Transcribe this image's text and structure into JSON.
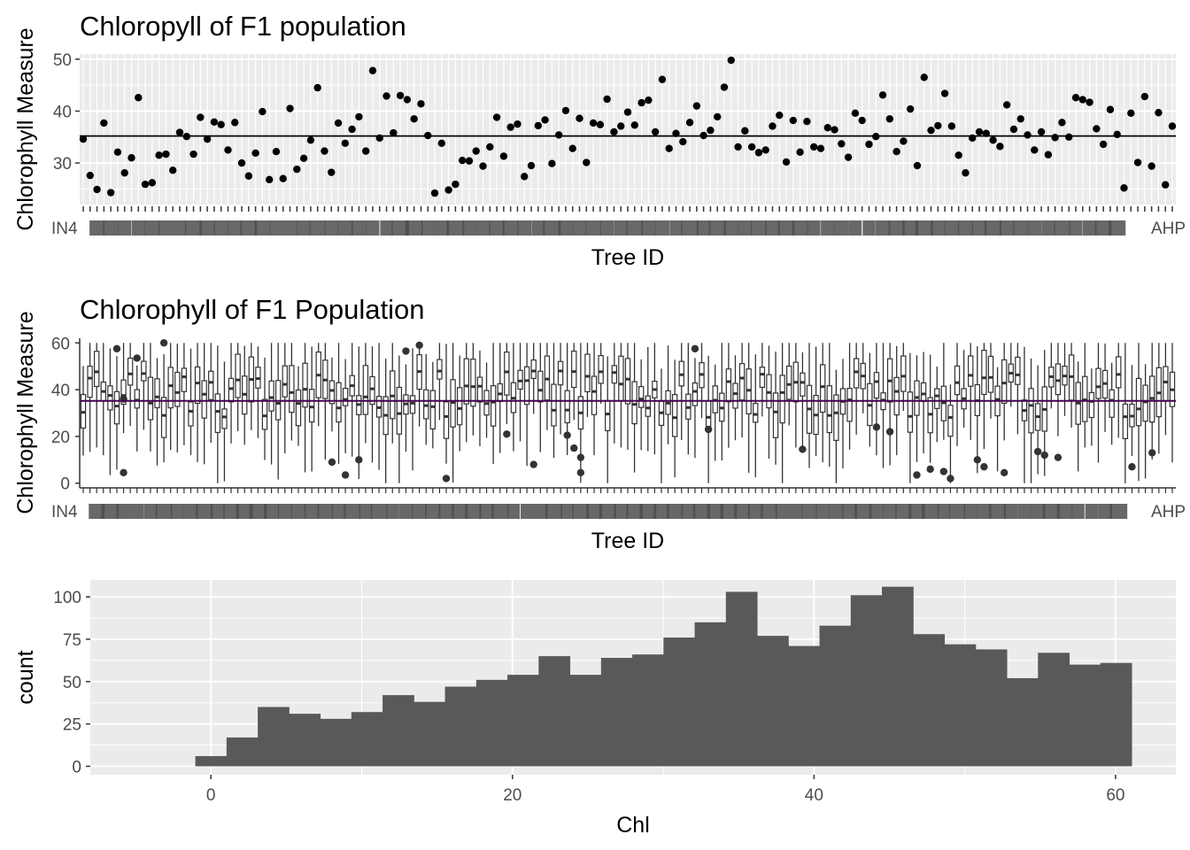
{
  "colors": {
    "panel_bg": "#ebebeb",
    "grid": "#ffffff",
    "point": "#000000",
    "mean_line_1": "#000000",
    "mean_line_2": "#440154",
    "bar_fill": "#595959",
    "text": "#000000",
    "tick_text": "#4d4d4d"
  },
  "chart_data": [
    {
      "type": "scatter",
      "title": "Chloropyll of F1 population",
      "xlabel": "Tree ID",
      "ylabel": "Chlorophyll Measure",
      "ylim": [
        22,
        51
      ],
      "yticks": [
        30,
        40,
        50
      ],
      "x_tick_labels_overlapping": "IN4 ... AHP",
      "x_tick_label_left": "IN4",
      "x_tick_label_right": "AHP",
      "mean_line": 35.2,
      "grid": true,
      "values": [
        34.6,
        27.6,
        24.9,
        37.7,
        24.3,
        32.1,
        28.1,
        31,
        42.6,
        25.9,
        26.2,
        31.5,
        31.7,
        28.6,
        35.9,
        35.1,
        31.7,
        38.8,
        34.6,
        37.9,
        37.4,
        32.5,
        37.8,
        30,
        27.5,
        31.9,
        39.9,
        26.8,
        32.2,
        27,
        40.5,
        28.8,
        30.9,
        34.4,
        44.5,
        32.3,
        28.2,
        37.7,
        33.8,
        36.5,
        38.9,
        32.3,
        47.8,
        34.8,
        42.9,
        35.8,
        43,
        42.2,
        38.5,
        41.4,
        35.3,
        24.2,
        33.8,
        24.8,
        25.9,
        30.5,
        30.4,
        32.3,
        29.4,
        33.1,
        38.8,
        31.3,
        36.9,
        37.5,
        27.4,
        29.5,
        37.2,
        38.3,
        29.9,
        35.4,
        40.1,
        32.8,
        38.6,
        30.1,
        37.7,
        37.4,
        42.3,
        36,
        37.1,
        39.8,
        37.3,
        41.6,
        42.1,
        36,
        46.1,
        32.8,
        35.7,
        34.1,
        37.8,
        41,
        35.3,
        36.3,
        38.9,
        44.6,
        49.8,
        33.1,
        36.2,
        33.1,
        32,
        32.5,
        37.1,
        39.2,
        30.2,
        38.2,
        32.1,
        38,
        33.1,
        32.8,
        36.8,
        36.4,
        33.7,
        31.1,
        39.6,
        38.2,
        33.6,
        35.1,
        43.1,
        38.5,
        32.2,
        34.2,
        40.4,
        29.5,
        46.5,
        36.3,
        37.2,
        43.4,
        37.1,
        31.5,
        28.1,
        34.8,
        36,
        35.7,
        34.4,
        33.2,
        41.2,
        36.5,
        38.5,
        35.4,
        32.5,
        36,
        31.6,
        34.9,
        37.8,
        35,
        42.6,
        42.2,
        41.7,
        36.6,
        33.6,
        40.3,
        35.5,
        25.2,
        39.6,
        30.1,
        42.8,
        29.4,
        39.7,
        25.8,
        37.1
      ]
    },
    {
      "type": "box",
      "title": "Chlorophyll of F1 Population",
      "xlabel": "Tree ID",
      "ylabel": "Chlorophyll Measure",
      "ylim": [
        -2,
        62
      ],
      "yticks": [
        0,
        20,
        40,
        60
      ],
      "x_tick_labels_overlapping": "IN4 ... AHP",
      "x_tick_label_left": "IN4",
      "x_tick_label_right": "AHP",
      "mean_line": 35.2,
      "grid": false,
      "n_boxes": 163,
      "outliers": [
        [
          5,
          57.5
        ],
        [
          6,
          4.5
        ],
        [
          6,
          36
        ],
        [
          9,
          53.5
        ],
        [
          13,
          60
        ],
        [
          40,
          9
        ],
        [
          42,
          3.5
        ],
        [
          44,
          10
        ],
        [
          52,
          56.5
        ],
        [
          54,
          59
        ],
        [
          58,
          2
        ],
        [
          68,
          21
        ],
        [
          72,
          8
        ],
        [
          78,
          20.5
        ],
        [
          79,
          15
        ],
        [
          80,
          11
        ],
        [
          80,
          4.5
        ],
        [
          98,
          57.5
        ],
        [
          100,
          23
        ],
        [
          116,
          14.5
        ],
        [
          128,
          24
        ],
        [
          130,
          22
        ],
        [
          134,
          3.5
        ],
        [
          136,
          6
        ],
        [
          138,
          5
        ],
        [
          139,
          2
        ],
        [
          144,
          10
        ],
        [
          145,
          7
        ],
        [
          148,
          4.5
        ],
        [
          153,
          13.5
        ],
        [
          155,
          12
        ],
        [
          157,
          11
        ],
        [
          169,
          7
        ],
        [
          172,
          13
        ]
      ]
    },
    {
      "type": "histogram",
      "title": "",
      "xlabel": "Chl",
      "ylabel": "count",
      "xlim": [
        -8,
        64
      ],
      "ylim": [
        -5,
        110
      ],
      "xticks": [
        0,
        20,
        40,
        60
      ],
      "yticks": [
        0,
        25,
        50,
        75,
        100
      ],
      "grid": true,
      "bin_width": 2.07,
      "bin_start": -1.035,
      "counts": [
        6,
        17,
        35,
        31,
        28,
        32,
        42,
        38,
        47,
        51,
        54,
        65,
        54,
        64,
        66,
        76,
        85,
        103,
        77,
        71,
        83,
        101,
        106,
        78,
        72,
        69,
        52,
        67,
        60,
        61
      ]
    }
  ]
}
